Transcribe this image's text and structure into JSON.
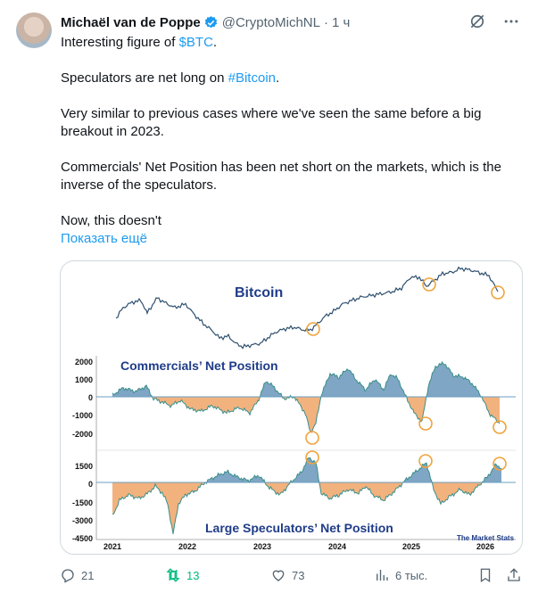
{
  "tweet": {
    "author_name": "Michaël van de Poppe",
    "handle": "@CryptoMichNL",
    "separator": "·",
    "time": "1 ч",
    "text": {
      "line1_pre": "Interesting figure of ",
      "line1_link": "$BTC",
      "line1_post": ".",
      "line2_pre": "Speculators are net long on ",
      "line2_link": "#Bitcoin",
      "line2_post": ".",
      "para3": "Very similar to previous cases where we've seen the same before a big breakout in 2023.",
      "para4": "Commercials' Net Position has been net short on the markets, which is the inverse of the speculators.",
      "para5": "Now, this doesn't"
    },
    "show_more": "Показать ещё"
  },
  "image": {
    "title_bitcoin": "Bitcoin",
    "title_commercials": "Commercials’ Net Position",
    "title_speculators": "Large Speculators’ Net Position",
    "watermark": "The Market Stats",
    "commercials_ticks": [
      "2000",
      "1000",
      "0",
      "-1000",
      "-2000"
    ],
    "speculators_ticks": [
      "1500",
      "0",
      "-1500",
      "-3000",
      "-4500"
    ],
    "years": [
      "2021",
      "2022",
      "2023",
      "2024",
      "2025",
      "2026"
    ],
    "colors": {
      "line": "#2e4f6e",
      "positive": "#7fa6c4",
      "negative": "#f2b27e",
      "circle": "#f0a33c"
    }
  },
  "actions": {
    "replies": "21",
    "retweets": "13",
    "likes": "73",
    "views": "6 тыс."
  },
  "colors": {
    "link": "#1d9bf0",
    "retweet": "#00ba7c",
    "muted": "#536471"
  }
}
